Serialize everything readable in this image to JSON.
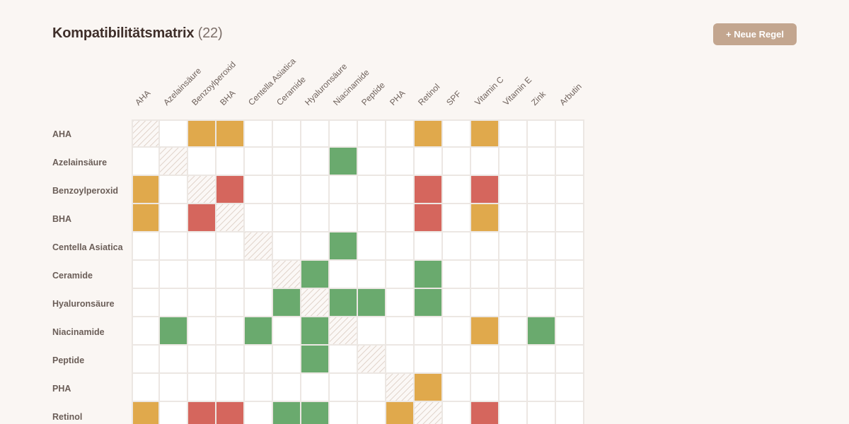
{
  "header": {
    "title": "Kompatibilitätsmatrix",
    "count": "(22)"
  },
  "toolbar": {
    "add_rule_label": "+ Neue Regel"
  },
  "colors": {
    "caution": "#e0a94c",
    "conflict": "#d5665d",
    "synergy": "#6aaa6e",
    "button": "#c3a68f",
    "background": "#faf6f3"
  },
  "matrix": {
    "columns": [
      "AHA",
      "Azelainsäure",
      "Benzoylperoxid",
      "BHA",
      "Centella Asiatica",
      "Ceramide",
      "Hyaluronsäure",
      "Niacinamide",
      "Peptide",
      "PHA",
      "Retinol",
      "SPF",
      "Vitamin C",
      "Vitamin E",
      "Zink",
      "Arbutin"
    ],
    "rows": [
      "AHA",
      "Azelainsäure",
      "Benzoylperoxid",
      "BHA",
      "Centella Asiatica",
      "Ceramide",
      "Hyaluronsäure",
      "Niacinamide",
      "Peptide",
      "PHA",
      "Retinol"
    ],
    "cells": [
      [
        "self",
        "",
        "caution",
        "caution",
        "",
        "",
        "",
        "",
        "",
        "",
        "caution",
        "",
        "caution",
        "",
        "",
        ""
      ],
      [
        "",
        "self",
        "",
        "",
        "",
        "",
        "",
        "synergy",
        "",
        "",
        "",
        "",
        "",
        "",
        "",
        ""
      ],
      [
        "caution",
        "",
        "self",
        "conflict",
        "",
        "",
        "",
        "",
        "",
        "",
        "conflict",
        "",
        "conflict",
        "",
        "",
        ""
      ],
      [
        "caution",
        "",
        "conflict",
        "self",
        "",
        "",
        "",
        "",
        "",
        "",
        "conflict",
        "",
        "caution",
        "",
        "",
        ""
      ],
      [
        "",
        "",
        "",
        "",
        "self",
        "",
        "",
        "synergy",
        "",
        "",
        "",
        "",
        "",
        "",
        "",
        ""
      ],
      [
        "",
        "",
        "",
        "",
        "",
        "self",
        "synergy",
        "",
        "",
        "",
        "synergy",
        "",
        "",
        "",
        "",
        ""
      ],
      [
        "",
        "",
        "",
        "",
        "",
        "synergy",
        "self",
        "synergy",
        "synergy",
        "",
        "synergy",
        "",
        "",
        "",
        "",
        ""
      ],
      [
        "",
        "synergy",
        "",
        "",
        "synergy",
        "",
        "synergy",
        "self",
        "",
        "",
        "",
        "",
        "caution",
        "",
        "synergy",
        ""
      ],
      [
        "",
        "",
        "",
        "",
        "",
        "",
        "synergy",
        "",
        "self",
        "",
        "",
        "",
        "",
        "",
        "",
        ""
      ],
      [
        "",
        "",
        "",
        "",
        "",
        "",
        "",
        "",
        "",
        "self",
        "caution",
        "",
        "",
        "",
        "",
        ""
      ],
      [
        "caution",
        "",
        "conflict",
        "conflict",
        "",
        "synergy",
        "synergy",
        "",
        "",
        "caution",
        "self",
        "",
        "conflict",
        "",
        "",
        ""
      ]
    ]
  }
}
